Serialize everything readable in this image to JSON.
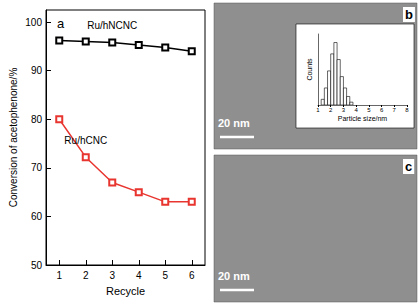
{
  "chart_data": [
    {
      "type": "line",
      "title": "a",
      "x_label": "Recycle",
      "y_label": "Conversion of acetophenone/%",
      "x": [
        1,
        2,
        3,
        4,
        5,
        6
      ],
      "series": [
        {
          "name": "Ru/hNCNC",
          "color": "#000000",
          "marker": "square",
          "values": [
            96.2,
            96.0,
            95.8,
            95.3,
            94.8,
            94.0
          ]
        },
        {
          "name": "Ru/hCNC",
          "color": "#e8352f",
          "marker": "square",
          "values": [
            80.0,
            72.2,
            67.0,
            65.0,
            63.0,
            63.0
          ]
        }
      ],
      "xlim": [
        0.5,
        6.5
      ],
      "xticks": [
        1,
        2,
        3,
        4,
        5,
        6
      ],
      "ylim": [
        50,
        102.5
      ],
      "yticks": [
        50,
        60,
        70,
        80,
        90,
        100
      ],
      "grid": false
    },
    {
      "type": "histogram",
      "x_label": "Particle size/nm",
      "y_label": "Counts",
      "bins": [
        1.25,
        1.5,
        1.75,
        2.0,
        2.25,
        2.5,
        2.75,
        3.0,
        3.25,
        3.5,
        3.75
      ],
      "counts": [
        2,
        6,
        12,
        18,
        22,
        16,
        10,
        6,
        3,
        1
      ],
      "color": "#ffffff",
      "xlim": [
        1,
        8
      ],
      "xticks": [
        1,
        2,
        3,
        4,
        5,
        6,
        7,
        8
      ],
      "ylim": [
        0,
        25
      ],
      "tick_labels": "x"
    }
  ],
  "images": [
    {
      "label": "b",
      "scale_bar": "20 nm"
    },
    {
      "label": "c",
      "scale_bar": "20 nm"
    }
  ]
}
